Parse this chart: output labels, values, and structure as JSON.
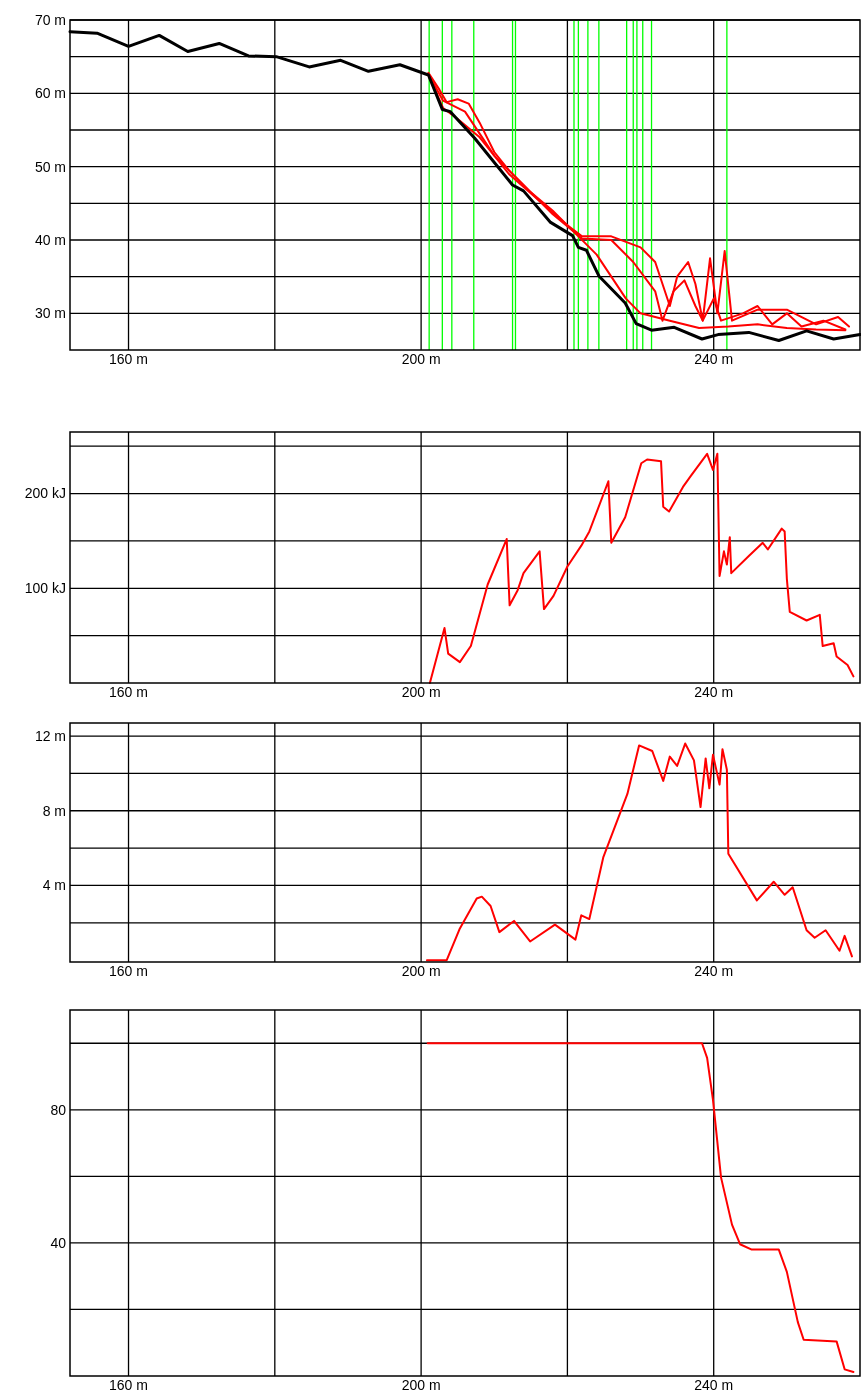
{
  "chart_data": [
    {
      "type": "line",
      "xlim": [
        152,
        260
      ],
      "xticks": [
        {
          "value": 160,
          "label": "160 m"
        },
        {
          "value": 180,
          "label": null
        },
        {
          "value": 200,
          "label": "200 m"
        },
        {
          "value": 220,
          "label": null
        },
        {
          "value": 240,
          "label": "240 m"
        }
      ],
      "ylim": [
        25,
        70
      ],
      "yticks": [
        {
          "value": 70,
          "label": "70 m"
        },
        {
          "value": 65,
          "label": null
        },
        {
          "value": 60,
          "label": "60 m"
        },
        {
          "value": 55,
          "label": null
        },
        {
          "value": 50,
          "label": "50 m"
        },
        {
          "value": 45,
          "label": null
        },
        {
          "value": 40,
          "label": "40 m"
        },
        {
          "value": 35,
          "label": null
        },
        {
          "value": 30,
          "label": "30 m"
        }
      ],
      "grid": true,
      "series": [
        {
          "color": "#000000",
          "x": [
            152,
            155.7,
            160,
            164.2,
            168.1,
            172.4,
            176.4,
            180.2,
            184.7,
            189,
            192.8,
            197.1,
            201,
            202.9,
            204,
            207.3,
            212.5,
            214,
            217.7,
            220.7,
            221.5,
            222.6,
            224.3,
            227.9,
            229.4,
            231.5,
            234.6,
            238.4,
            240.6,
            244.8,
            248.9,
            252.7,
            256.4,
            260
          ],
          "values": [
            68.4,
            68.2,
            66.4,
            67.9,
            65.7,
            66.8,
            65.1,
            65,
            63.6,
            64.5,
            63,
            63.9,
            62.5,
            57.8,
            57.5,
            53.9,
            47.5,
            46.7,
            42.4,
            40.6,
            39,
            38.6,
            35.1,
            31.4,
            28.6,
            27.7,
            28.1,
            26.5,
            27.1,
            27.4,
            26.3,
            27.6,
            26.5,
            27.1
          ]
        },
        {
          "color": "#ff0000",
          "x": [
            201,
            202.5,
            203.5,
            205,
            206.5,
            208,
            210,
            212,
            215,
            218,
            220,
            222,
            226,
            230,
            232,
            233,
            234,
            235,
            236.5,
            237.5,
            238.5,
            239.5,
            240.5,
            241.5,
            242.5,
            246,
            250,
            254,
            257,
            258.5
          ],
          "values": [
            62.8,
            60.5,
            58.8,
            59.2,
            58.6,
            56,
            52,
            49.5,
            46.5,
            44,
            42,
            40.5,
            40.5,
            39,
            37,
            34,
            31,
            35,
            37,
            34,
            29,
            37.5,
            30,
            38.5,
            29,
            30.5,
            30.5,
            28.5,
            29.5,
            28.2
          ]
        },
        {
          "color": "#ff0000",
          "x": [
            201,
            203,
            205,
            208,
            212,
            216,
            220,
            224,
            228,
            230,
            234,
            238,
            242,
            246,
            250,
            254,
            258
          ],
          "values": [
            62.5,
            58,
            56.5,
            54,
            49,
            45.5,
            42,
            38,
            32,
            30,
            29,
            28,
            28.2,
            28.5,
            28,
            27.8,
            27.7
          ]
        },
        {
          "color": "#ff0000",
          "x": [
            201,
            203,
            206,
            210,
            214,
            218,
            222,
            226,
            229,
            232,
            233,
            234.5,
            236,
            237.5,
            238.5,
            240,
            241,
            244,
            246,
            248,
            250,
            252,
            255,
            258
          ],
          "values": [
            62.6,
            59,
            57.5,
            51.5,
            47.5,
            43.5,
            40.2,
            40,
            37,
            33,
            29,
            33,
            34.5,
            31,
            29,
            32,
            29,
            30,
            31,
            28.5,
            30,
            28.2,
            29,
            27.8
          ]
        }
      ],
      "ref_lines": [
        {
          "axis": "x",
          "value": 201.1,
          "color": "#00ff00"
        },
        {
          "axis": "x",
          "value": 202.9,
          "color": "#00ff00"
        },
        {
          "axis": "x",
          "value": 204.2,
          "color": "#00ff00"
        },
        {
          "axis": "x",
          "value": 207.2,
          "color": "#00ff00"
        },
        {
          "axis": "x",
          "value": 212.5,
          "color": "#00ff00"
        },
        {
          "axis": "x",
          "value": 212.9,
          "color": "#00ff00"
        },
        {
          "axis": "x",
          "value": 220.9,
          "color": "#00ff00"
        },
        {
          "axis": "x",
          "value": 221.5,
          "color": "#00ff00"
        },
        {
          "axis": "x",
          "value": 222.8,
          "color": "#00ff00"
        },
        {
          "axis": "x",
          "value": 224.3,
          "color": "#00ff00"
        },
        {
          "axis": "x",
          "value": 228.1,
          "color": "#00ff00"
        },
        {
          "axis": "x",
          "value": 229,
          "color": "#00ff00"
        },
        {
          "axis": "x",
          "value": 229.5,
          "color": "#00ff00"
        },
        {
          "axis": "x",
          "value": 230.3,
          "color": "#00ff00"
        },
        {
          "axis": "x",
          "value": 231.5,
          "color": "#00ff00"
        },
        {
          "axis": "x",
          "value": 241.8,
          "color": "#00ff00"
        }
      ]
    },
    {
      "type": "line",
      "xlim": [
        152,
        260
      ],
      "xticks": [
        {
          "value": 160,
          "label": "160 m"
        },
        {
          "value": 180,
          "label": null
        },
        {
          "value": 200,
          "label": "200 m"
        },
        {
          "value": 220,
          "label": null
        },
        {
          "value": 240,
          "label": "240 m"
        }
      ],
      "ylim": [
        0,
        265
      ],
      "yticks": [
        {
          "value": 250,
          "label": null
        },
        {
          "value": 200,
          "label": "200 kJ"
        },
        {
          "value": 150,
          "label": null
        },
        {
          "value": 100,
          "label": "100 kJ"
        },
        {
          "value": 50,
          "label": null
        }
      ],
      "grid": true,
      "series": [
        {
          "color": "#ff0000",
          "x": [
            201.2,
            203.2,
            203.7,
            205.3,
            206.8,
            209.1,
            211.7,
            212.1,
            213.2,
            214,
            216.2,
            216.8,
            218.1,
            220,
            221.9,
            223,
            225.6,
            226,
            227.9,
            230.1,
            230.9,
            232.8,
            233.1,
            233.9,
            235.8,
            236.9,
            239.1,
            239.9,
            240.5,
            240.8,
            241.4,
            241.8,
            242.2,
            242.4,
            244.8,
            246.7,
            247.4,
            249.3,
            249.7,
            250,
            250.4,
            252.7,
            254.5,
            254.9,
            256.4,
            256.8,
            258.3,
            259.1
          ],
          "values": [
            0,
            58,
            31,
            22,
            39,
            104,
            152,
            82,
            98,
            116,
            139,
            78,
            92,
            123,
            145,
            160,
            213,
            148,
            175,
            232,
            236,
            234,
            186,
            181,
            207,
            219,
            242,
            225,
            242,
            113,
            139,
            125,
            154,
            116,
            134,
            148,
            141,
            163,
            160,
            110,
            75,
            66,
            72,
            39,
            42,
            28,
            19,
            7
          ]
        }
      ]
    },
    {
      "type": "line",
      "xlim": [
        152,
        260
      ],
      "xticks": [
        {
          "value": 160,
          "label": "160 m"
        },
        {
          "value": 180,
          "label": null
        },
        {
          "value": 200,
          "label": "200 m"
        },
        {
          "value": 220,
          "label": null
        },
        {
          "value": 240,
          "label": "240 m"
        }
      ],
      "ylim": [
        -0.1,
        12.7
      ],
      "yticks": [
        {
          "value": 12,
          "label": "12 m"
        },
        {
          "value": 10,
          "label": null
        },
        {
          "value": 8,
          "label": "8 m"
        },
        {
          "value": 6,
          "label": null
        },
        {
          "value": 4,
          "label": "4 m"
        },
        {
          "value": 2,
          "label": null
        }
      ],
      "grid": true,
      "series": [
        {
          "color": "#ff0000",
          "x": [
            200.8,
            203.5,
            205.3,
            207.6,
            208.3,
            209.5,
            210.7,
            212.7,
            214.9,
            218.3,
            221.1,
            221.9,
            223,
            224.9,
            228.2,
            229.8,
            231.6,
            233.1,
            234,
            235,
            236.1,
            237.3,
            238.2,
            238.9,
            239.4,
            239.9,
            240.8,
            241.2,
            241.8,
            242,
            245.9,
            248.2,
            249.7,
            250.8,
            252.7,
            253.8,
            255.3,
            257.2,
            257.9,
            258.9
          ],
          "values": [
            0,
            0,
            1.7,
            3.3,
            3.4,
            2.9,
            1.5,
            2.1,
            1,
            1.9,
            1.1,
            2.4,
            2.2,
            5.5,
            8.9,
            11.5,
            11.2,
            9.6,
            10.9,
            10.4,
            11.6,
            10.7,
            8.2,
            10.8,
            9.2,
            11,
            9.4,
            11.3,
            10.2,
            5.7,
            3.2,
            4.2,
            3.5,
            3.9,
            1.6,
            1.2,
            1.6,
            0.5,
            1.3,
            0.2
          ]
        }
      ]
    },
    {
      "type": "line",
      "xlim": [
        152,
        260
      ],
      "xticks": [
        {
          "value": 160,
          "label": "160 m"
        },
        {
          "value": 180,
          "label": null
        },
        {
          "value": 200,
          "label": "200 m"
        },
        {
          "value": 220,
          "label": null
        },
        {
          "value": 240,
          "label": "240 m"
        }
      ],
      "ylim": [
        0,
        110
      ],
      "yticks": [
        {
          "value": 100,
          "label": null
        },
        {
          "value": 80,
          "label": "80"
        },
        {
          "value": 60,
          "label": null
        },
        {
          "value": 40,
          "label": "40"
        },
        {
          "value": 20,
          "label": null
        }
      ],
      "grid": true,
      "series": [
        {
          "color": "#ff0000",
          "x": [
            200.9,
            238.4,
            239.1,
            239.9,
            241,
            242.5,
            243.6,
            245.2,
            248.9,
            250,
            251.5,
            252.3,
            256.8,
            257.9,
            259.1
          ],
          "values": [
            100,
            100,
            95.6,
            83,
            59.7,
            45.5,
            39.6,
            38,
            38,
            31.3,
            16.2,
            10.9,
            10.4,
            2,
            1.2
          ]
        }
      ]
    }
  ]
}
